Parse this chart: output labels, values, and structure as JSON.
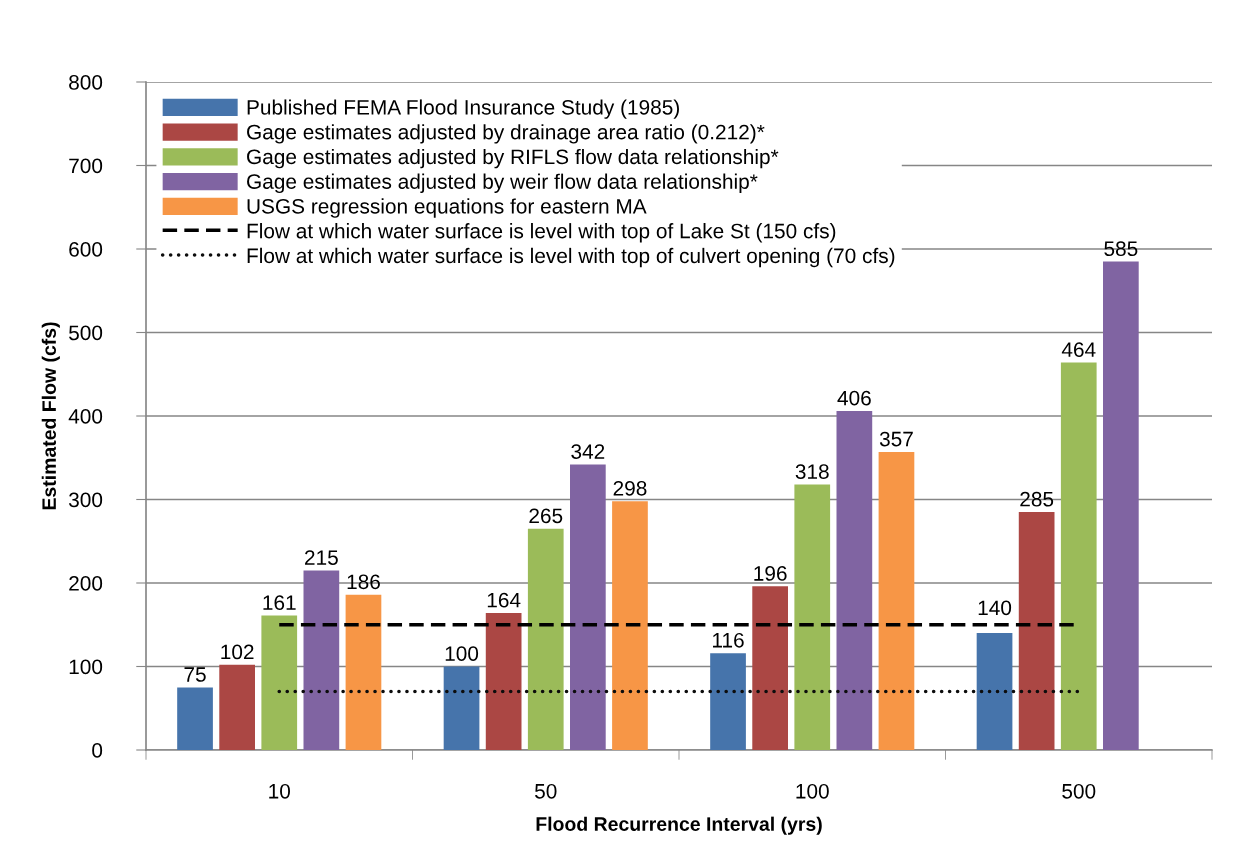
{
  "chart_data": {
    "type": "bar",
    "xlabel": "Flood Recurrence Interval (yrs)",
    "ylabel": "Estimated Flow (cfs)",
    "categories": [
      "10",
      "50",
      "100",
      "500"
    ],
    "ylim": [
      0,
      800
    ],
    "yticks": [
      0,
      100,
      200,
      300,
      400,
      500,
      600,
      700,
      800
    ],
    "grid": "y",
    "legend": "top left",
    "series": [
      {
        "name": "Published FEMA Flood Insurance Study (1985)",
        "color": "#4674ab",
        "values": [
          75,
          100,
          116,
          140
        ],
        "value_labels": [
          "75",
          "100",
          "116",
          "140"
        ]
      },
      {
        "name": "Gage estimates adjusted by drainage area ratio (0.212)*",
        "color": "#ab4744",
        "values": [
          102,
          164,
          196,
          285
        ],
        "value_labels": [
          "102",
          "164",
          "196",
          "285"
        ]
      },
      {
        "name": "Gage estimates adjusted by RIFLS flow data relationship*",
        "color": "#9bbb59",
        "values": [
          161,
          265,
          318,
          464
        ],
        "value_labels": [
          "161",
          "265",
          "318",
          "464"
        ]
      },
      {
        "name": "Gage estimates adjusted by weir flow data relationship*",
        "color": "#8064a2",
        "values": [
          215,
          342,
          406,
          585
        ],
        "value_labels": [
          "215",
          "342",
          "406",
          "585"
        ]
      },
      {
        "name": "USGS regression equations for eastern MA",
        "color": "#f79646",
        "values": [
          186,
          298,
          357,
          null
        ],
        "value_labels": [
          "186",
          "298",
          "357",
          null
        ]
      },
      {
        "name": "Flow at which water surface is level with top of Lake St (150 cfs)",
        "type": "line",
        "color": "#000000",
        "line_style": "dashed",
        "values": [
          150,
          150,
          150,
          150
        ]
      },
      {
        "name": "Flow at which water surface is level with top of culvert opening (70 cfs)",
        "type": "line",
        "color": "#0d0d0d",
        "line_style": "dotted",
        "values": [
          70,
          70,
          70,
          70
        ]
      }
    ]
  }
}
